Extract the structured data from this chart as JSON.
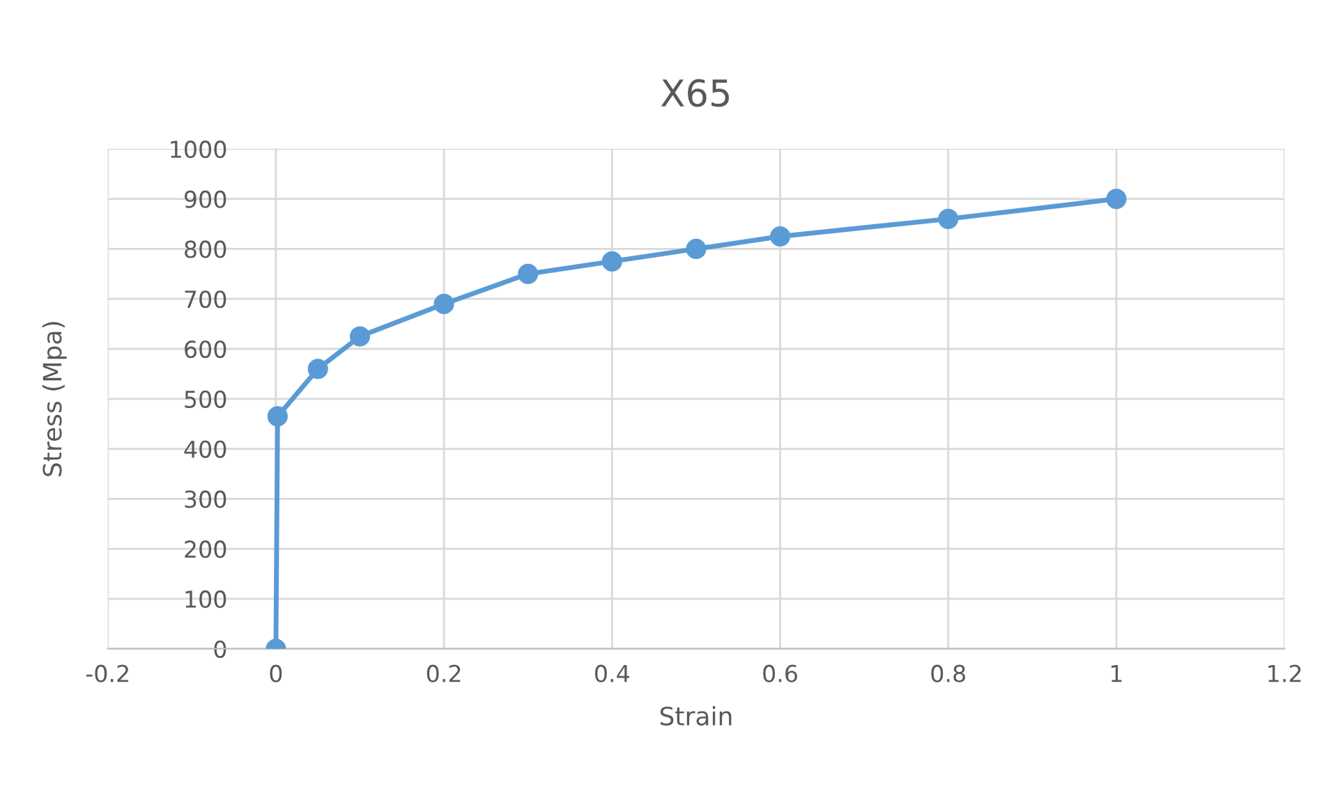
{
  "chart_data": {
    "type": "line",
    "title": "X65",
    "xlabel": "Strain",
    "ylabel": "Stress (Mpa)",
    "series": [
      {
        "color": "#5b9bd5",
        "x": [
          0,
          0.002,
          0.05,
          0.1,
          0.2,
          0.3,
          0.4,
          0.5,
          0.6,
          0.8,
          1
        ],
        "values": [
          0,
          465,
          560,
          625,
          690,
          750,
          775,
          800,
          825,
          860,
          900
        ]
      }
    ],
    "xlim": [
      -0.2,
      1.2
    ],
    "xticks": [
      -0.2,
      0,
      0.2,
      0.4,
      0.6,
      0.8,
      1,
      1.2
    ],
    "ylim": [
      0,
      1000
    ],
    "yticks": [
      0,
      100,
      200,
      300,
      400,
      500,
      600,
      700,
      800,
      900,
      1000
    ],
    "grid": true,
    "marker": "circle",
    "line_style": "solid",
    "legend": false
  }
}
